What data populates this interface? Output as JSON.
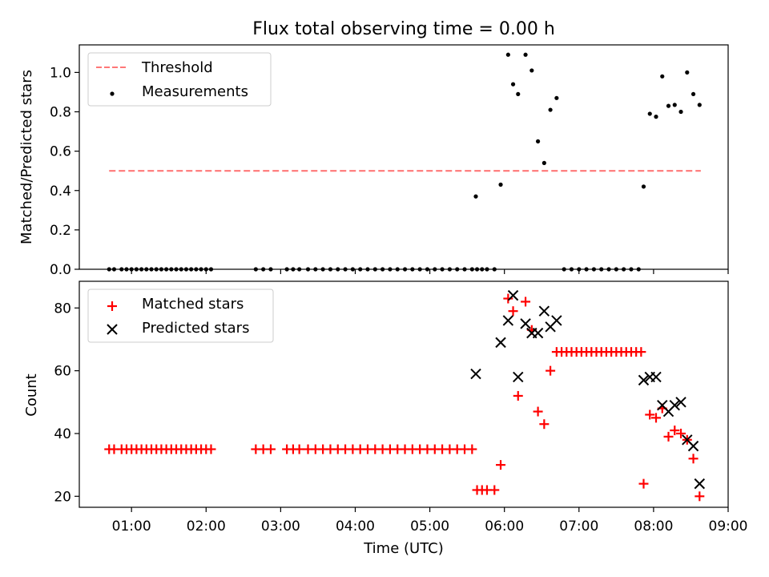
{
  "chart_data": [
    {
      "type": "scatter",
      "title": "Flux total observing time = 0.00 h",
      "xlabel": "",
      "ylabel": "Matched/Predicted stars",
      "xlim": [
        "00:18",
        "09:00"
      ],
      "ylim": [
        0,
        1.14
      ],
      "yticks": [
        "0.0",
        "0.2",
        "0.4",
        "0.6",
        "0.8",
        "1.0"
      ],
      "legend": "top-left",
      "threshold": {
        "name": "Threshold",
        "y": 0.5,
        "x": [
          "00:42",
          "08:38"
        ],
        "color": "#ff7777",
        "style": "dashed"
      },
      "series": [
        {
          "name": "Measurements",
          "marker": "dot",
          "color": "#000000",
          "points": [
            [
              "00:42",
              0
            ],
            [
              "00:46",
              0
            ],
            [
              "00:52",
              0
            ],
            [
              "00:56",
              0
            ],
            [
              "01:00",
              0
            ],
            [
              "01:04",
              0
            ],
            [
              "01:08",
              0
            ],
            [
              "01:12",
              0
            ],
            [
              "01:16",
              0
            ],
            [
              "01:20",
              0
            ],
            [
              "01:24",
              0
            ],
            [
              "01:28",
              0
            ],
            [
              "01:32",
              0
            ],
            [
              "01:36",
              0
            ],
            [
              "01:40",
              0
            ],
            [
              "01:44",
              0
            ],
            [
              "01:48",
              0
            ],
            [
              "01:52",
              0
            ],
            [
              "01:56",
              0
            ],
            [
              "02:00",
              0
            ],
            [
              "02:04",
              0
            ],
            [
              "02:40",
              0
            ],
            [
              "02:46",
              0
            ],
            [
              "02:52",
              0
            ],
            [
              "03:05",
              0
            ],
            [
              "03:10",
              0
            ],
            [
              "03:15",
              0
            ],
            [
              "03:22",
              0
            ],
            [
              "03:28",
              0
            ],
            [
              "03:34",
              0
            ],
            [
              "03:40",
              0
            ],
            [
              "03:46",
              0
            ],
            [
              "03:52",
              0
            ],
            [
              "03:58",
              0
            ],
            [
              "04:04",
              0
            ],
            [
              "04:10",
              0
            ],
            [
              "04:16",
              0
            ],
            [
              "04:22",
              0
            ],
            [
              "04:28",
              0
            ],
            [
              "04:34",
              0
            ],
            [
              "04:40",
              0
            ],
            [
              "04:46",
              0
            ],
            [
              "04:52",
              0
            ],
            [
              "04:58",
              0
            ],
            [
              "05:04",
              0
            ],
            [
              "05:10",
              0
            ],
            [
              "05:16",
              0
            ],
            [
              "05:22",
              0
            ],
            [
              "05:28",
              0
            ],
            [
              "05:34",
              0
            ],
            [
              "05:38",
              0
            ],
            [
              "05:42",
              0
            ],
            [
              "05:46",
              0
            ],
            [
              "05:52",
              0
            ],
            [
              "05:37",
              0.37
            ],
            [
              "05:57",
              0.43
            ],
            [
              "06:03",
              1.09
            ],
            [
              "06:07",
              0.94
            ],
            [
              "06:11",
              0.89
            ],
            [
              "06:17",
              1.09
            ],
            [
              "06:22",
              1.01
            ],
            [
              "06:27",
              0.65
            ],
            [
              "06:32",
              0.54
            ],
            [
              "06:37",
              0.81
            ],
            [
              "06:42",
              0.87
            ],
            [
              "06:48",
              0
            ],
            [
              "06:54",
              0
            ],
            [
              "07:00",
              0
            ],
            [
              "07:06",
              0
            ],
            [
              "07:12",
              0
            ],
            [
              "07:18",
              0
            ],
            [
              "07:24",
              0
            ],
            [
              "07:30",
              0
            ],
            [
              "07:36",
              0
            ],
            [
              "07:42",
              0
            ],
            [
              "07:48",
              0
            ],
            [
              "07:52",
              0.42
            ],
            [
              "07:57",
              0.79
            ],
            [
              "08:02",
              0.775
            ],
            [
              "08:07",
              0.98
            ],
            [
              "08:12",
              0.83
            ],
            [
              "08:17",
              0.835
            ],
            [
              "08:22",
              0.8
            ],
            [
              "08:27",
              1.0
            ],
            [
              "08:32",
              0.89
            ],
            [
              "08:37",
              0.835
            ]
          ]
        }
      ]
    },
    {
      "type": "scatter",
      "title": "",
      "xlabel": "Time (UTC)",
      "ylabel": "Count",
      "xlim": [
        "00:18",
        "09:00"
      ],
      "ylim": [
        16.5,
        88.5
      ],
      "xticks": [
        "01:00",
        "02:00",
        "03:00",
        "04:00",
        "05:00",
        "06:00",
        "07:00",
        "08:00",
        "09:00"
      ],
      "yticks": [
        "20",
        "40",
        "60",
        "80"
      ],
      "legend": "top-left",
      "series": [
        {
          "name": "Matched stars",
          "marker": "plus",
          "color": "#ff0000",
          "points": [
            [
              "00:42",
              35
            ],
            [
              "00:46",
              35
            ],
            [
              "00:52",
              35
            ],
            [
              "00:56",
              35
            ],
            [
              "01:00",
              35
            ],
            [
              "01:04",
              35
            ],
            [
              "01:08",
              35
            ],
            [
              "01:12",
              35
            ],
            [
              "01:16",
              35
            ],
            [
              "01:20",
              35
            ],
            [
              "01:24",
              35
            ],
            [
              "01:28",
              35
            ],
            [
              "01:32",
              35
            ],
            [
              "01:36",
              35
            ],
            [
              "01:40",
              35
            ],
            [
              "01:44",
              35
            ],
            [
              "01:48",
              35
            ],
            [
              "01:52",
              35
            ],
            [
              "01:56",
              35
            ],
            [
              "02:00",
              35
            ],
            [
              "02:04",
              35
            ],
            [
              "02:40",
              35
            ],
            [
              "02:46",
              35
            ],
            [
              "02:52",
              35
            ],
            [
              "03:05",
              35
            ],
            [
              "03:10",
              35
            ],
            [
              "03:15",
              35
            ],
            [
              "03:22",
              35
            ],
            [
              "03:28",
              35
            ],
            [
              "03:34",
              35
            ],
            [
              "03:40",
              35
            ],
            [
              "03:46",
              35
            ],
            [
              "03:52",
              35
            ],
            [
              "03:58",
              35
            ],
            [
              "04:04",
              35
            ],
            [
              "04:10",
              35
            ],
            [
              "04:16",
              35
            ],
            [
              "04:22",
              35
            ],
            [
              "04:28",
              35
            ],
            [
              "04:34",
              35
            ],
            [
              "04:40",
              35
            ],
            [
              "04:46",
              35
            ],
            [
              "04:52",
              35
            ],
            [
              "04:58",
              35
            ],
            [
              "05:04",
              35
            ],
            [
              "05:10",
              35
            ],
            [
              "05:16",
              35
            ],
            [
              "05:22",
              35
            ],
            [
              "05:28",
              35
            ],
            [
              "05:34",
              35
            ],
            [
              "05:38",
              22
            ],
            [
              "05:42",
              22
            ],
            [
              "05:46",
              22
            ],
            [
              "05:52",
              22
            ],
            [
              "05:57",
              30
            ],
            [
              "06:03",
              83
            ],
            [
              "06:07",
              79
            ],
            [
              "06:11",
              52
            ],
            [
              "06:17",
              82
            ],
            [
              "06:22",
              73
            ],
            [
              "06:27",
              47
            ],
            [
              "06:32",
              43
            ],
            [
              "06:37",
              60
            ],
            [
              "06:42",
              66
            ],
            [
              "06:46",
              66
            ],
            [
              "06:50",
              66
            ],
            [
              "06:54",
              66
            ],
            [
              "06:58",
              66
            ],
            [
              "07:02",
              66
            ],
            [
              "07:06",
              66
            ],
            [
              "07:10",
              66
            ],
            [
              "07:14",
              66
            ],
            [
              "07:18",
              66
            ],
            [
              "07:22",
              66
            ],
            [
              "07:26",
              66
            ],
            [
              "07:30",
              66
            ],
            [
              "07:34",
              66
            ],
            [
              "07:38",
              66
            ],
            [
              "07:42",
              66
            ],
            [
              "07:46",
              66
            ],
            [
              "07:50",
              66
            ],
            [
              "07:52",
              24
            ],
            [
              "07:57",
              46
            ],
            [
              "08:02",
              45
            ],
            [
              "08:07",
              48
            ],
            [
              "08:12",
              39
            ],
            [
              "08:17",
              41
            ],
            [
              "08:22",
              40
            ],
            [
              "08:27",
              38
            ],
            [
              "08:32",
              32
            ],
            [
              "08:37",
              20
            ]
          ]
        },
        {
          "name": "Predicted stars",
          "marker": "x",
          "color": "#000000",
          "points": [
            [
              "05:37",
              59
            ],
            [
              "05:57",
              69
            ],
            [
              "06:03",
              76
            ],
            [
              "06:07",
              84
            ],
            [
              "06:11",
              58
            ],
            [
              "06:17",
              75
            ],
            [
              "06:22",
              72
            ],
            [
              "06:27",
              72
            ],
            [
              "06:32",
              79
            ],
            [
              "06:37",
              74
            ],
            [
              "06:42",
              76
            ],
            [
              "07:52",
              57
            ],
            [
              "07:57",
              58
            ],
            [
              "08:02",
              58
            ],
            [
              "08:07",
              49
            ],
            [
              "08:12",
              47
            ],
            [
              "08:17",
              49
            ],
            [
              "08:22",
              50
            ],
            [
              "08:27",
              38
            ],
            [
              "08:32",
              36
            ],
            [
              "08:37",
              24
            ]
          ]
        }
      ]
    }
  ]
}
